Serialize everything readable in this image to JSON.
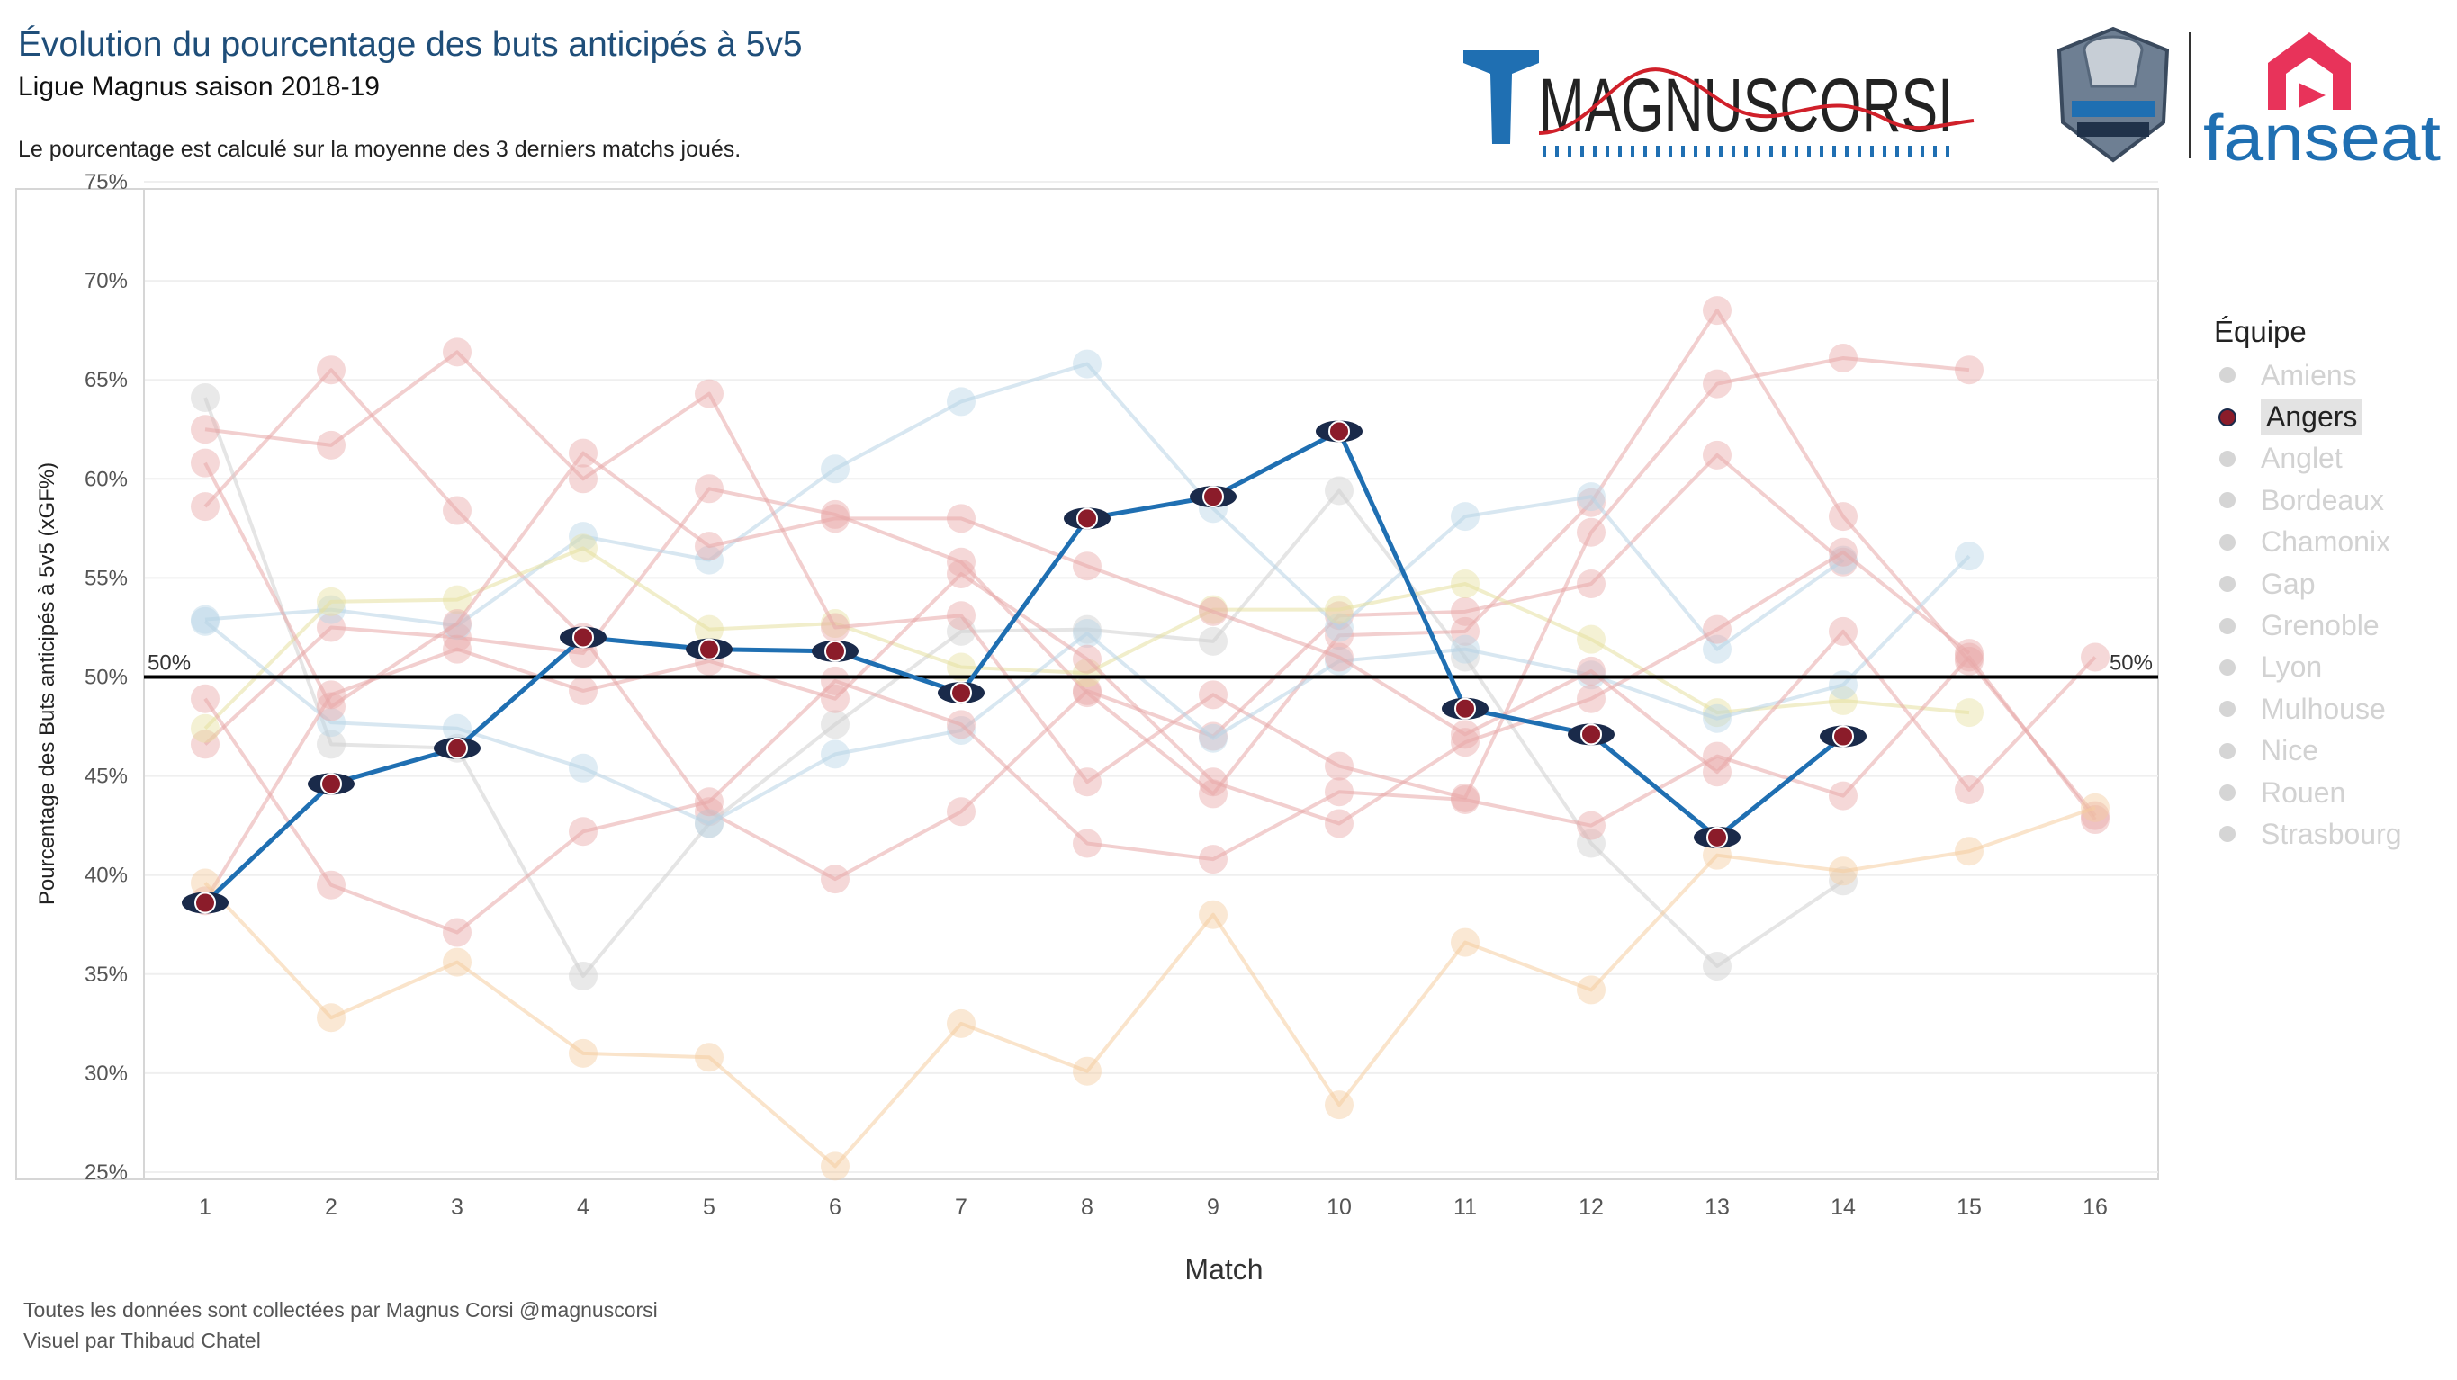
{
  "header": {
    "title": "Évolution du pourcentage des buts anticipés à 5v5",
    "subtitle": "Ligue Magnus saison 2018-19",
    "note": "Le pourcentage est calculé sur la moyenne des 3 derniers matchs joués."
  },
  "footer": {
    "line1": "Toutes les données sont collectées par Magnus Corsi @magnuscorsi",
    "line2": "Visuel par Thibaud Chatel"
  },
  "logos": {
    "magnuscorsi": "MAGNUSCORSI",
    "fanseat": "fanseat"
  },
  "legend": {
    "title": "Équipe",
    "selected": "Angers",
    "items": [
      "Amiens",
      "Angers",
      "Anglet",
      "Bordeaux",
      "Chamonix",
      "Gap",
      "Grenoble",
      "Lyon",
      "Mulhouse",
      "Nice",
      "Rouen",
      "Strasbourg"
    ]
  },
  "colors": {
    "highlight_line": "#1f6fb2",
    "reference_line": "#000000",
    "faded_red": "#e8a8a8",
    "faded_blue": "#b8d4e6",
    "faded_orange": "#f5cda0",
    "faded_grey": "#cfcfcf",
    "faded_yellow": "#e6e0a0"
  },
  "chart_data": {
    "type": "line",
    "xlabel": "Match",
    "ylabel": "Pourcentage des Buts anticipés à 5v5 (xGF%)",
    "x": [
      1,
      2,
      3,
      4,
      5,
      6,
      7,
      8,
      9,
      10,
      11,
      12,
      13,
      14,
      15,
      16
    ],
    "ylim": [
      25,
      75
    ],
    "yticks": [
      "25%",
      "30%",
      "35%",
      "40%",
      "45%",
      "50%",
      "55%",
      "60%",
      "65%",
      "70%",
      "75%"
    ],
    "reference_line": {
      "value": 50,
      "left_label": "50%",
      "right_label": "50%"
    },
    "highlighted_series": "Angers",
    "series": [
      {
        "name": "Angers",
        "color": "#1f6fb2",
        "values": [
          38.6,
          44.6,
          46.4,
          52.0,
          51.4,
          51.3,
          49.2,
          58.0,
          59.1,
          62.4,
          48.4,
          47.1,
          41.9,
          47.0,
          null,
          null
        ]
      },
      {
        "name": "Amiens",
        "color": "#e8a8a8",
        "values": [
          58.6,
          65.5,
          58.4,
          52.0,
          43.2,
          39.8,
          43.2,
          49.3,
          47.0,
          53.1,
          53.3,
          54.7,
          61.2,
          55.8,
          null,
          null
        ]
      },
      {
        "name": "Anglet",
        "color": "#cfcfcf",
        "values": [
          64.1,
          46.6,
          46.4,
          34.9,
          42.6,
          47.6,
          52.3,
          52.4,
          51.8,
          59.4,
          51.0,
          41.6,
          35.4,
          39.7,
          null,
          null
        ]
      },
      {
        "name": "Bordeaux",
        "color": "#e8a8a8",
        "values": [
          46.6,
          52.5,
          52.0,
          51.2,
          59.5,
          58.2,
          55.8,
          49.2,
          44.1,
          52.1,
          52.3,
          58.8,
          68.5,
          58.1,
          50.8,
          43.0
        ]
      },
      {
        "name": "Chamonix",
        "color": "#b8d4e6",
        "values": [
          52.9,
          53.4,
          52.6,
          57.1,
          55.9,
          60.5,
          63.9,
          65.8,
          58.5,
          52.5,
          58.1,
          59.1,
          51.4,
          55.9,
          null,
          null
        ]
      },
      {
        "name": "Gap",
        "color": "#e6e0a0",
        "values": [
          47.4,
          53.8,
          53.9,
          56.5,
          52.4,
          52.7,
          50.5,
          50.2,
          53.4,
          53.4,
          54.7,
          51.9,
          48.2,
          48.8,
          48.2,
          null
        ]
      },
      {
        "name": "Grenoble",
        "color": "#e8a8a8",
        "values": [
          62.5,
          61.7,
          66.4,
          60.0,
          64.3,
          52.5,
          53.1,
          44.7,
          49.1,
          45.5,
          43.9,
          57.3,
          64.8,
          66.1,
          65.5,
          null
        ]
      },
      {
        "name": "Lyon",
        "color": "#b8d4e6",
        "values": [
          52.8,
          47.7,
          47.4,
          45.4,
          42.6,
          46.1,
          47.3,
          52.2,
          46.9,
          50.8,
          51.4,
          50.1,
          47.9,
          49.6,
          56.1,
          null
        ]
      },
      {
        "name": "Mulhouse",
        "color": "#e8a8a8",
        "values": [
          60.8,
          48.5,
          52.7,
          61.3,
          56.6,
          58.0,
          58.0,
          55.6,
          53.3,
          51.0,
          47.1,
          50.3,
          45.2,
          52.3,
          44.3,
          51.0
        ]
      },
      {
        "name": "Nice",
        "color": "#e8a8a8",
        "values": [
          48.9,
          39.5,
          37.1,
          42.2,
          43.7,
          49.8,
          47.6,
          41.6,
          40.8,
          44.2,
          43.8,
          42.5,
          46.0,
          44.0,
          51.0,
          42.8
        ]
      },
      {
        "name": "Rouen",
        "color": "#e8a8a8",
        "values": [
          38.7,
          49.1,
          51.4,
          49.3,
          50.8,
          48.9,
          55.2,
          50.9,
          44.7,
          42.6,
          46.7,
          48.9,
          52.4,
          56.3,
          51.2,
          null
        ]
      },
      {
        "name": "Strasbourg",
        "color": "#f5cda0",
        "values": [
          39.6,
          32.8,
          35.6,
          31.0,
          30.8,
          25.3,
          32.5,
          30.1,
          38.0,
          28.4,
          36.6,
          34.2,
          41.0,
          40.2,
          41.2,
          43.4
        ]
      }
    ]
  }
}
